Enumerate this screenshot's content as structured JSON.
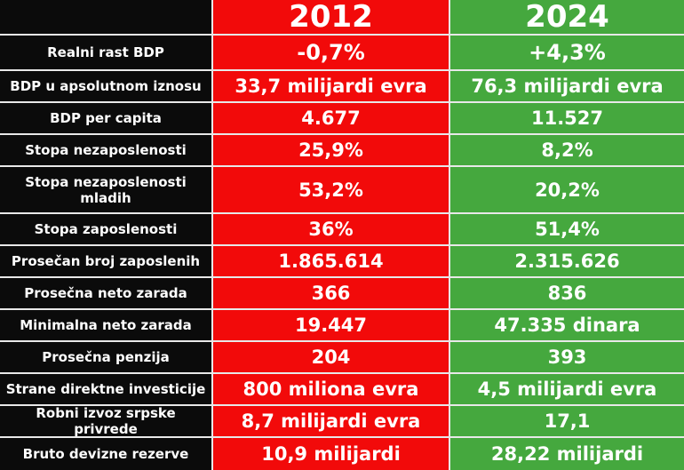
{
  "columns": [
    "2012",
    "2024"
  ],
  "colors": {
    "col_2012": "#f20a0a",
    "col_2024": "#45a83e",
    "label_bg": "#0b0b0b"
  },
  "rows": [
    {
      "label": "Realni rast BDP",
      "v2012": "-0,7%",
      "v2024": "+4,3%"
    },
    {
      "label": "BDP u apsolutnom iznosu",
      "v2012": "33,7 milijardi evra",
      "v2024": "76,3 milijardi evra"
    },
    {
      "label": "BDP per capita",
      "v2012": "4.677",
      "v2024": "11.527"
    },
    {
      "label": "Stopa nezaposlenosti",
      "v2012": "25,9%",
      "v2024": "8,2%"
    },
    {
      "label": "Stopa nezaposlenosti mladih",
      "v2012": "53,2%",
      "v2024": "20,2%"
    },
    {
      "label": "Stopa zaposlenosti",
      "v2012": "36%",
      "v2024": "51,4%"
    },
    {
      "label": "Prosečan broj zaposlenih",
      "v2012": "1.865.614",
      "v2024": "2.315.626"
    },
    {
      "label": "Prosečna neto zarada",
      "v2012": "366",
      "v2024": "836"
    },
    {
      "label": "Minimalna neto zarada",
      "v2012": "19.447",
      "v2024": "47.335 dinara"
    },
    {
      "label": "Prosečna penzija",
      "v2012": "204",
      "v2024": "393"
    },
    {
      "label": "Strane direktne investicije",
      "v2012": "800 miliona evra",
      "v2024": "4,5 milijardi evra"
    },
    {
      "label": "Robni izvoz srpske privrede",
      "v2012": "8,7 milijardi evra",
      "v2024": "17,1"
    },
    {
      "label": "Bruto devizne rezerve",
      "v2012": "10,9 milijardi",
      "v2024": "28,22 milijardi"
    }
  ]
}
